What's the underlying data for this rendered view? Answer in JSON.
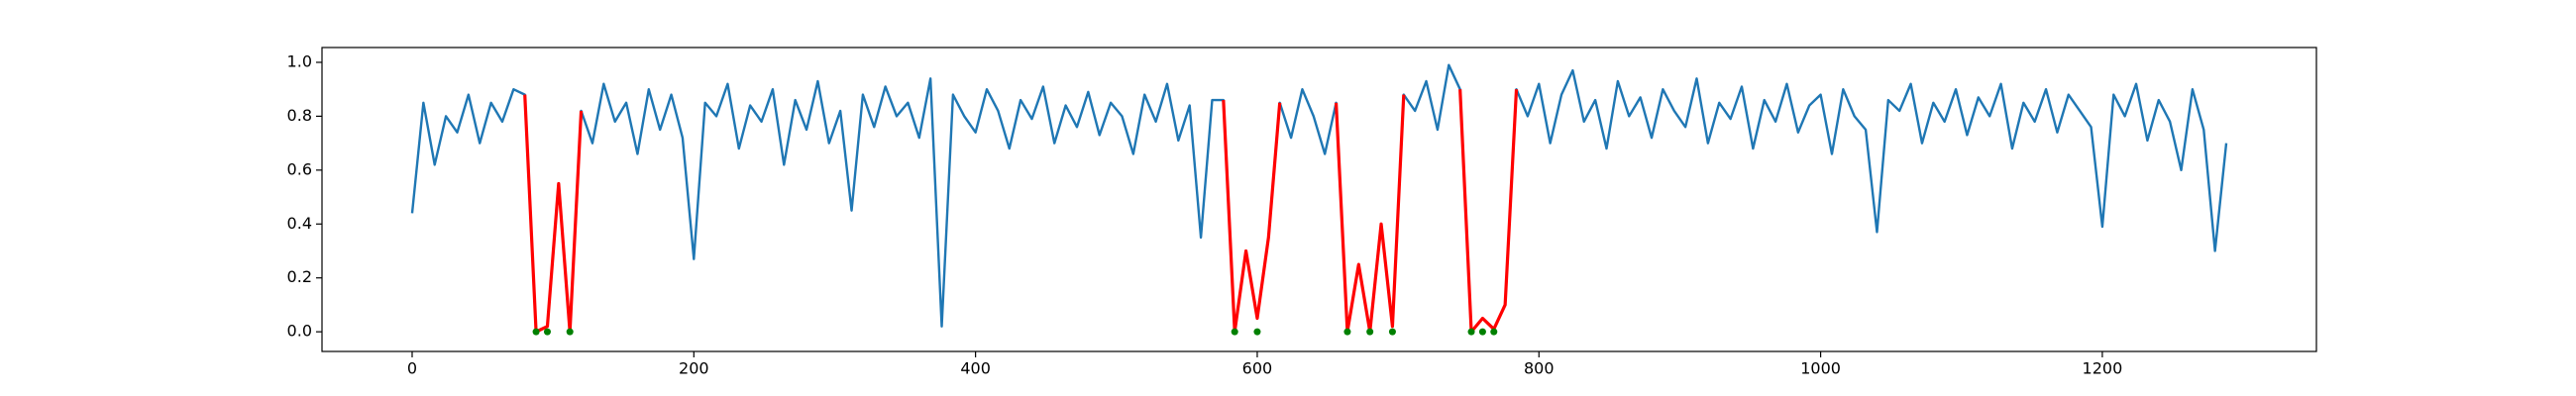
{
  "chart_data": {
    "type": "line",
    "xlim": [
      -64,
      1352
    ],
    "ylim": [
      -0.073,
      1.055
    ],
    "xticks": [
      0,
      200,
      400,
      600,
      800,
      1000,
      1200
    ],
    "yticks": [
      {
        "value": 0,
        "label": "0.0"
      },
      0.2,
      0.4,
      0.6,
      0.8,
      {
        "value": 1,
        "label": "1.0"
      }
    ],
    "series": [
      {
        "color": "#1f77b4",
        "style": "line",
        "x": [
          0,
          8,
          16,
          24,
          32,
          40,
          48,
          56,
          64,
          72,
          80,
          88,
          96,
          104,
          112,
          120,
          128,
          136,
          144,
          152,
          160,
          168,
          176,
          184,
          192,
          200,
          208,
          216,
          224,
          232,
          240,
          248,
          256,
          264,
          272,
          280,
          288,
          296,
          304,
          312,
          320,
          328,
          336,
          344,
          352,
          360,
          368,
          376,
          384,
          392,
          400,
          408,
          416,
          424,
          432,
          440,
          448,
          456,
          464,
          472,
          480,
          488,
          496,
          504,
          512,
          520,
          528,
          536,
          544,
          552,
          560,
          568,
          576,
          584,
          592,
          600,
          608,
          616,
          624,
          632,
          640,
          648,
          656,
          664,
          672,
          680,
          688,
          696,
          704,
          712,
          720,
          728,
          736,
          744,
          752,
          760,
          768,
          776,
          784,
          792,
          800,
          808,
          816,
          824,
          832,
          840,
          848,
          856,
          864,
          872,
          880,
          888,
          896,
          904,
          912,
          920,
          928,
          936,
          944,
          952,
          960,
          968,
          976,
          984,
          992,
          1000,
          1008,
          1016,
          1024,
          1032,
          1040,
          1048,
          1056,
          1064,
          1072,
          1080,
          1088,
          1096,
          1104,
          1112,
          1120,
          1128,
          1136,
          1144,
          1152,
          1160,
          1168,
          1176,
          1184,
          1192,
          1200,
          1208,
          1216,
          1224,
          1232,
          1240,
          1248,
          1256,
          1264,
          1272,
          1280,
          1288
        ],
        "values": [
          0.44,
          0.85,
          0.62,
          0.8,
          0.74,
          0.88,
          0.7,
          0.85,
          0.78,
          0.9,
          0.88,
          0.0,
          0.02,
          0.55,
          0.0,
          0.82,
          0.7,
          0.92,
          0.78,
          0.85,
          0.66,
          0.9,
          0.75,
          0.88,
          0.72,
          0.27,
          0.85,
          0.8,
          0.92,
          0.68,
          0.84,
          0.78,
          0.9,
          0.62,
          0.86,
          0.75,
          0.93,
          0.7,
          0.82,
          0.45,
          0.88,
          0.76,
          0.91,
          0.8,
          0.85,
          0.72,
          0.94,
          0.02,
          0.88,
          0.8,
          0.74,
          0.9,
          0.82,
          0.68,
          0.86,
          0.79,
          0.91,
          0.7,
          0.84,
          0.76,
          0.89,
          0.73,
          0.85,
          0.8,
          0.66,
          0.88,
          0.78,
          0.92,
          0.71,
          0.84,
          0.35,
          0.86,
          0.86,
          0.0,
          0.3,
          0.05,
          0.35,
          0.85,
          0.72,
          0.9,
          0.8,
          0.66,
          0.85,
          0.0,
          0.25,
          0.0,
          0.4,
          0.02,
          0.88,
          0.82,
          0.93,
          0.75,
          0.99,
          0.9,
          0.0,
          0.05,
          0.01,
          0.1,
          0.9,
          0.8,
          0.92,
          0.7,
          0.88,
          0.97,
          0.78,
          0.86,
          0.68,
          0.93,
          0.8,
          0.87,
          0.72,
          0.9,
          0.82,
          0.76,
          0.94,
          0.7,
          0.85,
          0.79,
          0.91,
          0.68,
          0.86,
          0.78,
          0.92,
          0.74,
          0.84,
          0.88,
          0.66,
          0.9,
          0.8,
          0.75,
          0.37,
          0.86,
          0.82,
          0.92,
          0.7,
          0.85,
          0.78,
          0.9,
          0.73,
          0.87,
          0.8,
          0.92,
          0.68,
          0.85,
          0.78,
          0.9,
          0.74,
          0.88,
          0.82,
          0.76,
          0.39,
          0.88,
          0.8,
          0.92,
          0.71,
          0.86,
          0.78,
          0.6,
          0.9,
          0.75,
          0.3,
          0.7
        ]
      },
      {
        "color": "#ff0000",
        "style": "line",
        "x": [
          80,
          88,
          96,
          104,
          112,
          120,
          128,
          576,
          584,
          592,
          600,
          608,
          616,
          624,
          656,
          664,
          672,
          680,
          688,
          696,
          704,
          712,
          744,
          752,
          760,
          768,
          776,
          784
        ],
        "values": [
          0.88,
          0.0,
          0.02,
          0.55,
          0.0,
          0.82,
          null,
          0.86,
          0.0,
          0.3,
          0.05,
          0.35,
          0.85,
          null,
          0.85,
          0.0,
          0.25,
          0.0,
          0.4,
          0.02,
          0.88,
          null,
          0.9,
          0.0,
          0.05,
          0.01,
          0.1,
          0.9
        ]
      },
      {
        "color": "#008000",
        "style": "marker",
        "x": [
          88,
          96,
          112,
          584,
          600,
          664,
          680,
          696,
          752,
          760,
          768
        ],
        "values": [
          0,
          0,
          0,
          0,
          0,
          0,
          0,
          0,
          0,
          0,
          0
        ]
      }
    ]
  }
}
